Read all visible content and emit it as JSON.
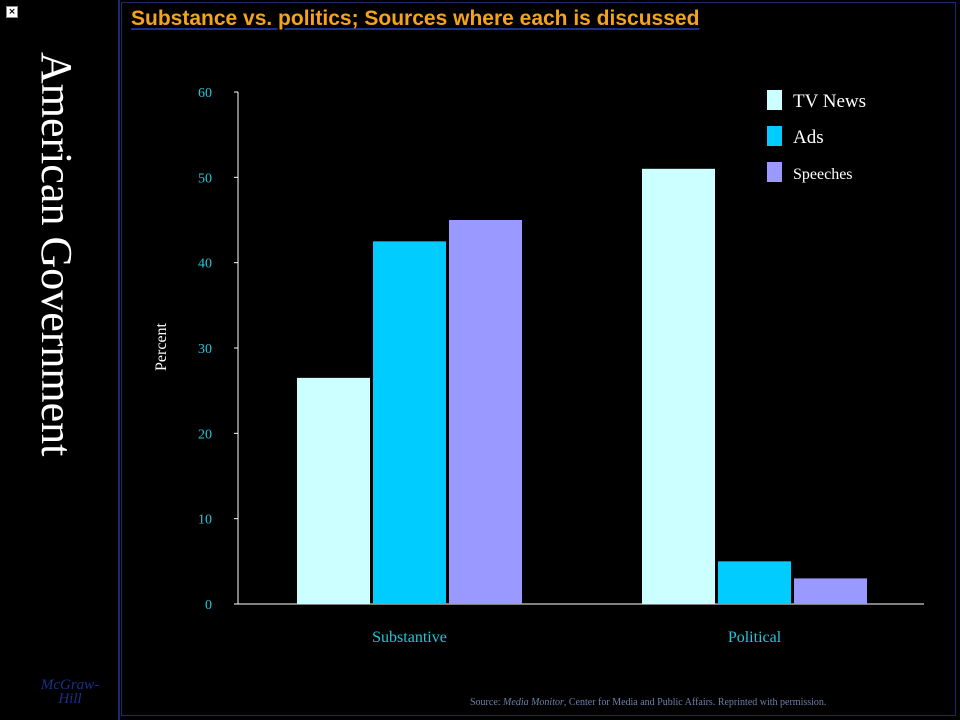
{
  "window": {
    "close_glyph": "×"
  },
  "sidebar": {
    "title": "American Government",
    "publisher_line1": "McGraw-",
    "publisher_line2": "Hill"
  },
  "slide": {
    "title": "Substance vs. politics; Sources where each is discussed",
    "source_prefix": "Source: ",
    "source_publication": "Media Monitor",
    "source_rest": ", Center for Media and Public Affairs. Reprinted with permission."
  },
  "colors": {
    "tv_news": "#ccffff",
    "ads": "#00ccff",
    "speeches": "#9999ff",
    "tick": "#26c6da",
    "title": "#f5a31a"
  },
  "chart_data": {
    "type": "bar",
    "categories": [
      "Substantive",
      "Political"
    ],
    "series": [
      {
        "name": "TV News",
        "values": [
          26.5,
          51
        ]
      },
      {
        "name": "Ads",
        "values": [
          42.5,
          5
        ]
      },
      {
        "name": "Speeches",
        "values": [
          45,
          3
        ]
      }
    ],
    "ylabel": "Percent",
    "xlabel": "",
    "ylim": [
      0,
      60
    ],
    "yticks": [
      0,
      10,
      20,
      30,
      40,
      50,
      60
    ],
    "grid": false,
    "legend": "top-right"
  }
}
